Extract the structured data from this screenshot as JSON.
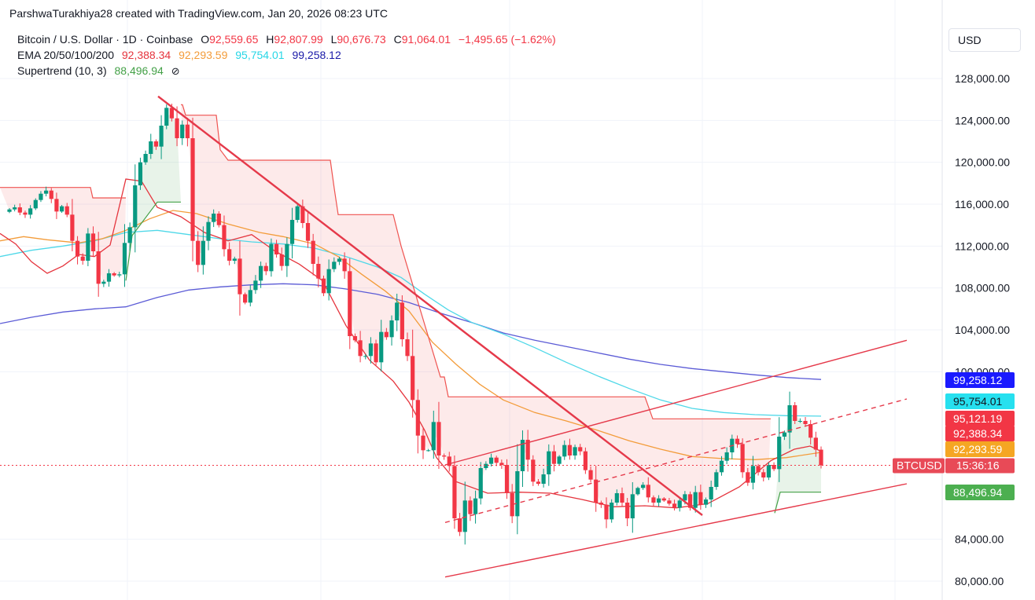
{
  "attribution": "ParshwaTurakhiya28 created with TradingView.com, Jan 20, 2026 08:23 UTC",
  "currency_button": "USD",
  "colors": {
    "up": "#089981",
    "down": "#f23645",
    "ema20": "#e5343d",
    "ema50": "#f39c3a",
    "ema100": "#4fd8e8",
    "ema200": "#5b5bd6",
    "supertrend_up": "#43a047",
    "supertrend_down": "#ef5350",
    "trendline": "#e5394a"
  },
  "legend": {
    "symbol": "Bitcoin / U.S. Dollar · 1D · Coinbase",
    "o_label": "O",
    "o_value": "92,559.65",
    "h_label": "H",
    "h_value": "92,807.99",
    "l_label": "L",
    "l_value": "90,676.73",
    "c_label": "C",
    "c_value": "91,064.01",
    "change": "−1,495.65 (−1.62%)",
    "ema_label": "EMA 20/50/100/200",
    "ema20": "92,388.34",
    "ema50": "92,293.59",
    "ema100": "95,754.01",
    "ema200": "99,258.12",
    "st_label": "Supertrend (10, 3)",
    "st_value": "88,496.94",
    "st_icon": "hidden-eye-icon"
  },
  "chart_data": {
    "type": "candlestick",
    "symbol": "BTCUSD",
    "interval": "1D",
    "y_ticks": [
      "80,000.00",
      "84,000.00",
      "100,000.00",
      "104,000.00",
      "108,000.00",
      "112,000.00",
      "116,000.00",
      "120,000.00",
      "124,000.00",
      "128,000.00"
    ],
    "ylim": [
      78500,
      130500
    ],
    "current_price": 91064.01,
    "countdown": "15:36:16",
    "grid": true,
    "axis_labels": [
      {
        "text": "99,258.12",
        "value": 99258.12,
        "color": "#1a1aff"
      },
      {
        "text": "95,754.01",
        "value": 95754.01,
        "color": "#26e0ef"
      },
      {
        "text": "95,121.19",
        "value": 95121.19,
        "color": "#f23645"
      },
      {
        "text": "92,388.34",
        "value": 92388.34,
        "color": "#f23645"
      },
      {
        "text": "92,293.59",
        "value": 92293.59,
        "color": "#f5a623"
      },
      {
        "text": "88,496.94",
        "value": 88496.94,
        "color": "#4caf50"
      }
    ],
    "price_tag": {
      "symbol": "BTCUSD",
      "text": "15:36:16"
    },
    "closes": [
      115500,
      115700,
      115200,
      115000,
      115600,
      116400,
      117000,
      117300,
      116500,
      115300,
      115800,
      115000,
      112500,
      111000,
      110600,
      113200,
      111500,
      108400,
      108600,
      109400,
      109200,
      109300,
      112300,
      113800,
      117800,
      120000,
      120800,
      122000,
      121500,
      123500,
      125200,
      124200,
      122300,
      123600,
      122300,
      112500,
      110200,
      112500,
      114300,
      115100,
      114000,
      111700,
      110600,
      110800,
      107400,
      106600,
      107800,
      108700,
      110100,
      109600,
      112200,
      111200,
      110100,
      112200,
      114500,
      115800,
      114200,
      112500,
      110300,
      108900,
      107500,
      109800,
      110500,
      110800,
      109600,
      103400,
      103000,
      101500,
      101500,
      102700,
      100900,
      103800,
      103300,
      104900,
      106600,
      103100,
      101500,
      97300,
      93900,
      92500,
      92500,
      95200,
      92000,
      91900,
      91000,
      86000,
      84700,
      87700,
      86400,
      87900,
      90800,
      91200,
      91800,
      91300,
      91100,
      88400,
      86200,
      90500,
      93500,
      91600,
      89500,
      89300,
      90200,
      92400,
      91200,
      91900,
      93000,
      92000,
      92800,
      92400,
      90600,
      89700,
      87500,
      87300,
      85900,
      87500,
      88400,
      87500,
      86000,
      88300,
      88900,
      89200,
      88000,
      87500,
      87900,
      87700,
      87400,
      87000,
      87700,
      88300,
      87000,
      88500,
      87300,
      87800,
      89000,
      90400,
      91500,
      92300,
      93600,
      93100,
      90400,
      89400,
      91000,
      90400,
      89900,
      91100,
      90700,
      93800,
      94200,
      96800,
      95300,
      95300,
      95000,
      93700,
      92559,
      91064
    ],
    "ema20": [
      [
        0,
        113200
      ],
      [
        20,
        112200
      ],
      [
        40,
        110500
      ],
      [
        60,
        109400
      ],
      [
        80,
        110100
      ],
      [
        100,
        111200
      ],
      [
        120,
        111000
      ],
      [
        140,
        112100
      ],
      [
        160,
        118400
      ],
      [
        180,
        118200
      ],
      [
        200,
        115700
      ],
      [
        230,
        114800
      ],
      [
        260,
        113300
      ],
      [
        290,
        112500
      ],
      [
        320,
        113100
      ],
      [
        350,
        111500
      ],
      [
        380,
        110300
      ],
      [
        410,
        108700
      ],
      [
        440,
        104400
      ],
      [
        470,
        101100
      ],
      [
        500,
        99100
      ],
      [
        520,
        97100
      ],
      [
        540,
        94400
      ],
      [
        555,
        91800
      ],
      [
        580,
        89500
      ],
      [
        620,
        88400
      ],
      [
        660,
        88500
      ],
      [
        700,
        88400
      ],
      [
        740,
        87800
      ],
      [
        780,
        87100
      ],
      [
        820,
        87200
      ],
      [
        860,
        87000
      ],
      [
        900,
        87400
      ],
      [
        940,
        89000
      ],
      [
        980,
        91500
      ],
      [
        1010,
        92600
      ],
      [
        1030,
        92900
      ],
      [
        1044,
        92400
      ]
    ],
    "ema50": [
      [
        0,
        112500
      ],
      [
        30,
        112900
      ],
      [
        60,
        112600
      ],
      [
        100,
        112300
      ],
      [
        130,
        112700
      ],
      [
        160,
        113500
      ],
      [
        190,
        114600
      ],
      [
        220,
        115400
      ],
      [
        250,
        115100
      ],
      [
        290,
        114100
      ],
      [
        330,
        113300
      ],
      [
        360,
        112900
      ],
      [
        400,
        112200
      ],
      [
        430,
        111000
      ],
      [
        460,
        109300
      ],
      [
        490,
        107700
      ],
      [
        520,
        105800
      ],
      [
        550,
        102800
      ],
      [
        580,
        100700
      ],
      [
        610,
        98800
      ],
      [
        640,
        97300
      ],
      [
        680,
        96100
      ],
      [
        720,
        95300
      ],
      [
        760,
        94400
      ],
      [
        800,
        93400
      ],
      [
        840,
        92600
      ],
      [
        880,
        91900
      ],
      [
        920,
        91700
      ],
      [
        960,
        91600
      ],
      [
        1000,
        91800
      ],
      [
        1044,
        92300
      ]
    ],
    "ema100": [
      [
        0,
        111000
      ],
      [
        40,
        111600
      ],
      [
        80,
        112000
      ],
      [
        120,
        112500
      ],
      [
        160,
        113300
      ],
      [
        200,
        113500
      ],
      [
        240,
        113100
      ],
      [
        280,
        112700
      ],
      [
        320,
        112400
      ],
      [
        360,
        112200
      ],
      [
        400,
        111800
      ],
      [
        440,
        111000
      ],
      [
        480,
        110000
      ],
      [
        510,
        109000
      ],
      [
        540,
        107400
      ],
      [
        570,
        105900
      ],
      [
        600,
        104700
      ],
      [
        640,
        103600
      ],
      [
        680,
        102300
      ],
      [
        720,
        100900
      ],
      [
        760,
        99600
      ],
      [
        800,
        98400
      ],
      [
        840,
        97300
      ],
      [
        880,
        96500
      ],
      [
        920,
        96100
      ],
      [
        960,
        95900
      ],
      [
        1000,
        95800
      ],
      [
        1044,
        95754
      ]
    ],
    "ema200": [
      [
        0,
        104600
      ],
      [
        40,
        105200
      ],
      [
        80,
        105700
      ],
      [
        120,
        106000
      ],
      [
        160,
        106200
      ],
      [
        200,
        107100
      ],
      [
        240,
        107800
      ],
      [
        280,
        108100
      ],
      [
        320,
        108300
      ],
      [
        360,
        108400
      ],
      [
        400,
        108300
      ],
      [
        440,
        107900
      ],
      [
        480,
        107400
      ],
      [
        520,
        106600
      ],
      [
        560,
        105600
      ],
      [
        600,
        104700
      ],
      [
        640,
        103700
      ],
      [
        680,
        103000
      ],
      [
        720,
        102400
      ],
      [
        760,
        101800
      ],
      [
        800,
        101200
      ],
      [
        840,
        100700
      ],
      [
        880,
        100300
      ],
      [
        920,
        100000
      ],
      [
        960,
        99700
      ],
      [
        1000,
        99450
      ],
      [
        1044,
        99258
      ]
    ],
    "supertrend": [
      {
        "dir": "down",
        "points": [
          [
            0,
            117600
          ],
          [
            115,
            117600
          ],
          [
            118,
            116600
          ],
          [
            160,
            116600
          ]
        ]
      },
      {
        "dir": "up",
        "points": [
          [
            160,
            108700
          ],
          [
            168,
            113000
          ],
          [
            200,
            116200
          ],
          [
            230,
            116200
          ]
        ]
      },
      {
        "dir": "down",
        "points": [
          [
            230,
            125500
          ],
          [
            232,
            125500
          ],
          [
            236,
            124500
          ],
          [
            275,
            124500
          ],
          [
            280,
            121200
          ],
          [
            290,
            120200
          ],
          [
            420,
            120200
          ],
          [
            425,
            117500
          ],
          [
            430,
            115000
          ],
          [
            500,
            115000
          ],
          [
            510,
            112000
          ],
          [
            560,
            99500
          ],
          [
            565,
            99500
          ],
          [
            570,
            97600
          ],
          [
            820,
            97600
          ],
          [
            830,
            95500
          ],
          [
            980,
            95500
          ]
        ]
      },
      {
        "dir": "up",
        "points": [
          [
            985,
            86500
          ],
          [
            992,
            88500
          ],
          [
            1044,
            88500
          ]
        ]
      }
    ],
    "trendlines": [
      {
        "style": "solid",
        "points": [
          [
            201,
            126300
          ],
          [
            893,
            86300
          ]
        ]
      },
      {
        "style": "solid",
        "points": [
          [
            566,
            80400
          ],
          [
            1153,
            89300
          ]
        ]
      },
      {
        "style": "solid",
        "points": [
          [
            566,
            91100
          ],
          [
            1153,
            103000
          ]
        ]
      },
      {
        "style": "dashed",
        "points": [
          [
            566,
            85600
          ],
          [
            1153,
            97400
          ]
        ]
      }
    ]
  }
}
